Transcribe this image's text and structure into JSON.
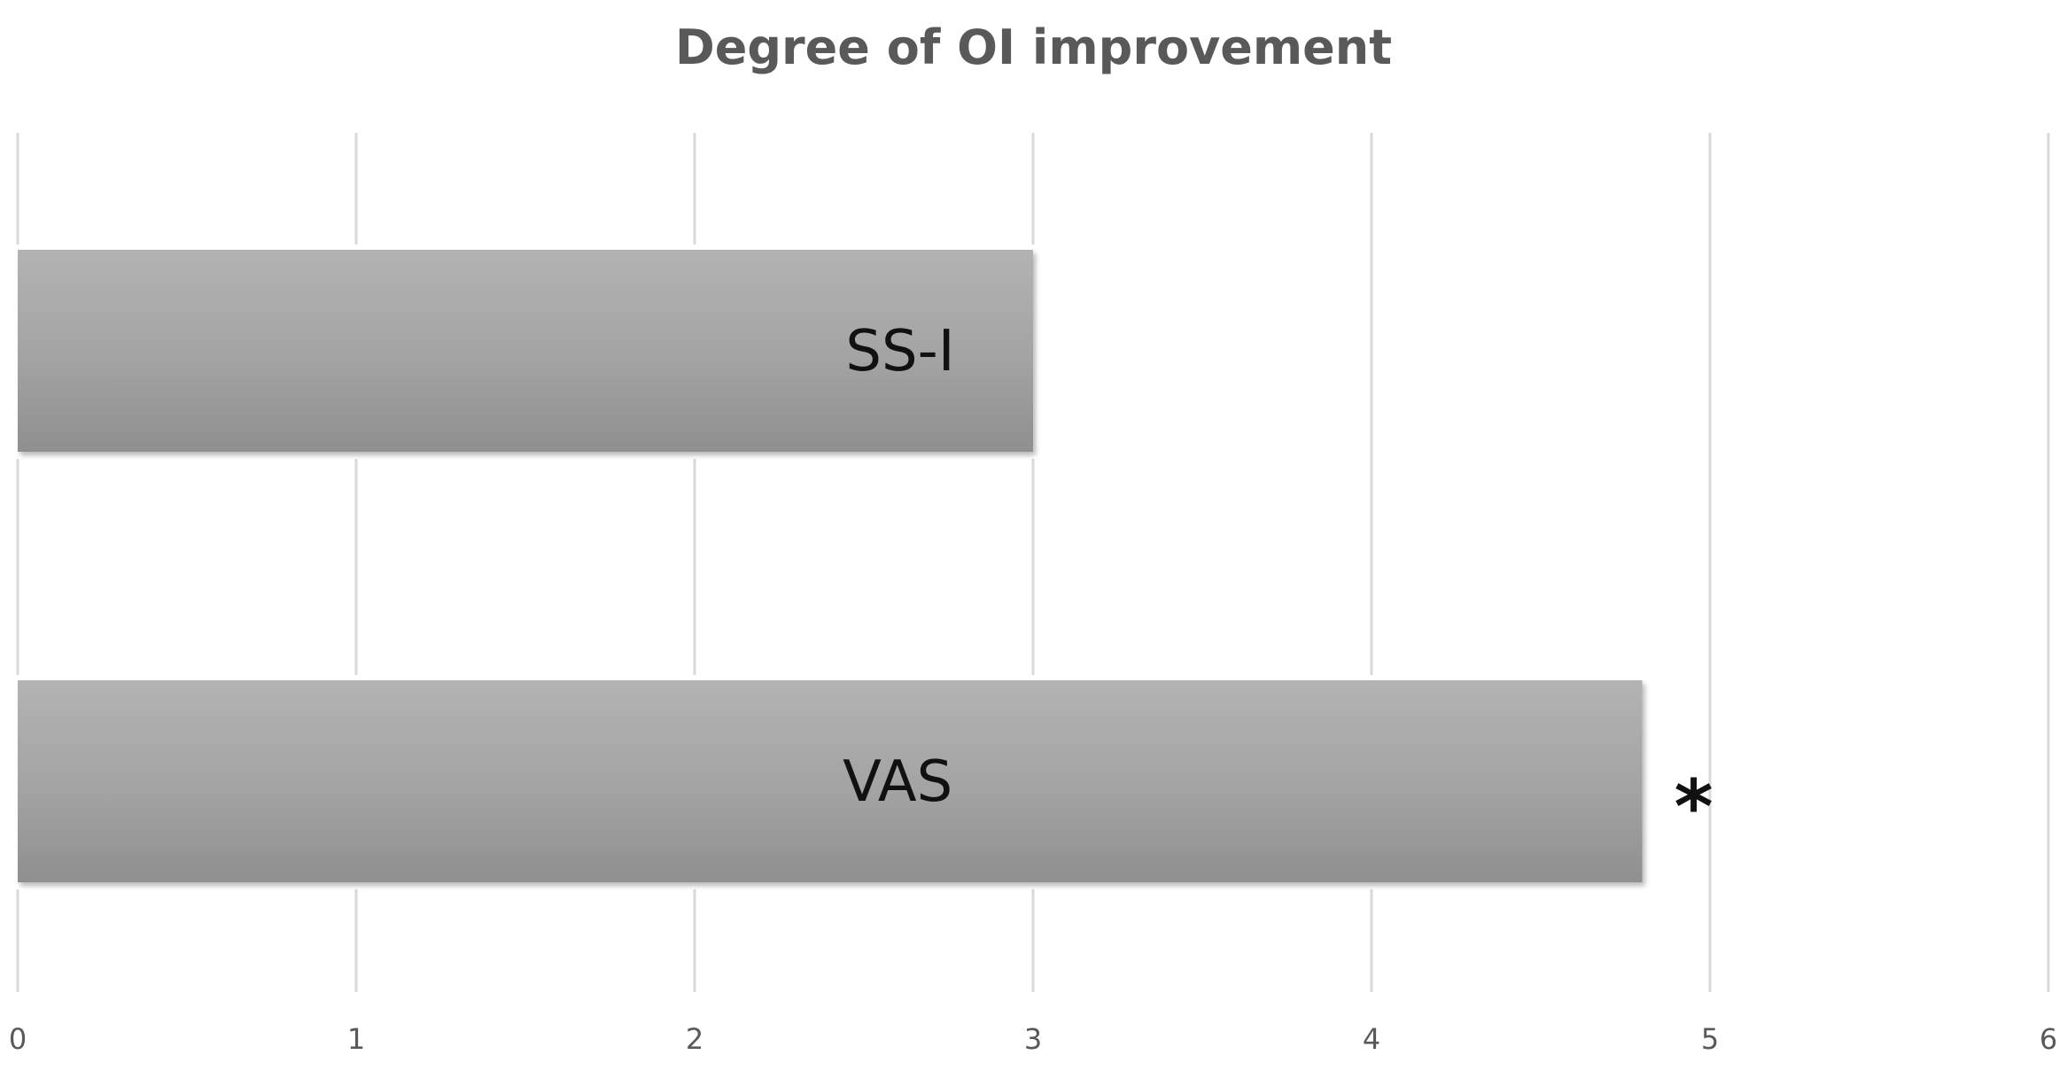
{
  "chart_data": {
    "type": "bar",
    "orientation": "horizontal",
    "title": "Degree of OI improvement",
    "xlabel": "",
    "ylabel": "",
    "categories": [
      "SS-I",
      "VAS"
    ],
    "values": [
      3.0,
      4.8
    ],
    "xlim": [
      0,
      6
    ],
    "x_ticks": [
      "0",
      "1",
      "2",
      "3",
      "4",
      "5",
      "6"
    ],
    "grid": "vertical",
    "legend": "none",
    "bar_color": "#a6a6a6",
    "annotations": [
      {
        "category": "VAS",
        "text": "*"
      }
    ]
  }
}
